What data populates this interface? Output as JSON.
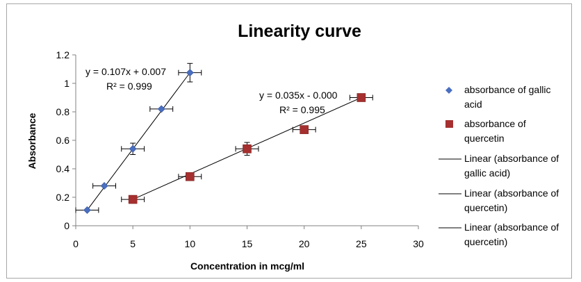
{
  "chart_data": {
    "type": "scatter",
    "title": "Linearity curve",
    "xlabel": "Concentration in mcg/ml",
    "ylabel": "Absorbance",
    "xlim": [
      0,
      30
    ],
    "ylim": [
      0,
      1.2
    ],
    "xticks": [
      "0",
      "5",
      "10",
      "15",
      "20",
      "25",
      "30"
    ],
    "yticks": [
      "0",
      "0.2",
      "0.4",
      "0.6",
      "0.8",
      "1",
      "1.2"
    ],
    "grid": false,
    "legend_position": "right",
    "series": [
      {
        "name": "absorbance of gallic acid",
        "marker": "diamond",
        "color": "#4a6fc0",
        "points": [
          {
            "x": 1,
            "y": 0.11,
            "xerr": 1,
            "yerr": 0
          },
          {
            "x": 2.5,
            "y": 0.28,
            "xerr": 1,
            "yerr": 0
          },
          {
            "x": 5,
            "y": 0.54,
            "xerr": 1,
            "yerr": 0.04
          },
          {
            "x": 7.5,
            "y": 0.82,
            "xerr": 1,
            "yerr": 0
          },
          {
            "x": 10,
            "y": 1.075,
            "xerr": 1,
            "yerr": 0.065
          }
        ]
      },
      {
        "name": "absorbance of quercetin",
        "marker": "square",
        "color": "#a5302f",
        "points": [
          {
            "x": 5,
            "y": 0.185,
            "xerr": 1,
            "yerr": 0
          },
          {
            "x": 10,
            "y": 0.345,
            "xerr": 1,
            "yerr": 0
          },
          {
            "x": 15,
            "y": 0.54,
            "xerr": 1,
            "yerr": 0.045
          },
          {
            "x": 20,
            "y": 0.675,
            "xerr": 1,
            "yerr": 0.025
          },
          {
            "x": 25,
            "y": 0.9,
            "xerr": 1,
            "yerr": 0
          }
        ]
      }
    ],
    "trendlines": [
      {
        "name": "Linear (absorbance of gallic acid)",
        "from": [
          1,
          0.11
        ],
        "to": [
          10,
          1.075
        ],
        "equation": "y = 0.107x + 0.007",
        "r2": "R² = 0.999"
      },
      {
        "name": "Linear (absorbance of quercetin)",
        "from": [
          5,
          0.185
        ],
        "to": [
          25,
          0.9
        ],
        "equation": "y = 0.035x - 0.000",
        "r2": "R² = 0.995"
      }
    ],
    "legend": [
      {
        "lines": [
          "absorbance of gallic",
          "acid"
        ],
        "kind": "diamond",
        "color": "#4a6fc0"
      },
      {
        "lines": [
          "absorbance of",
          "quercetin"
        ],
        "kind": "square",
        "color": "#a5302f"
      },
      {
        "lines": [
          "Linear (absorbance of",
          "gallic acid)"
        ],
        "kind": "line",
        "color": "#000000"
      },
      {
        "lines": [
          "Linear (absorbance of",
          "quercetin)"
        ],
        "kind": "line",
        "color": "#000000"
      },
      {
        "lines": [
          "Linear (absorbance of",
          "quercetin)"
        ],
        "kind": "line",
        "color": "#000000"
      }
    ]
  }
}
